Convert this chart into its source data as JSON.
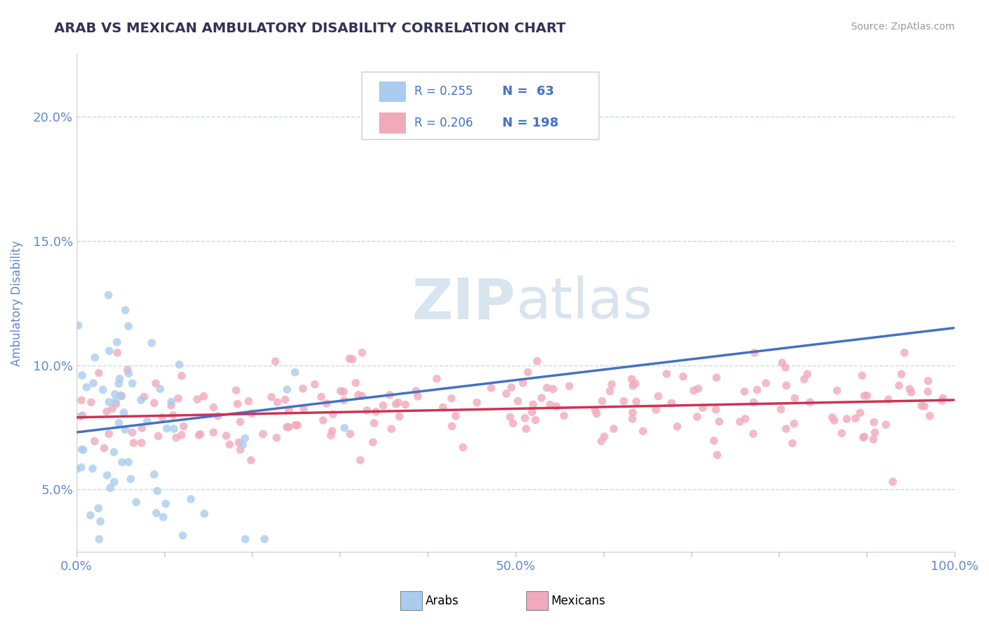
{
  "title": "ARAB VS MEXICAN AMBULATORY DISABILITY CORRELATION CHART",
  "source": "Source: ZipAtlas.com",
  "ylabel": "Ambulatory Disability",
  "xlim": [
    0,
    1.0
  ],
  "ylim": [
    0.025,
    0.225
  ],
  "yticks": [
    0.05,
    0.1,
    0.15,
    0.2
  ],
  "ytick_labels": [
    "5.0%",
    "10.0%",
    "15.0%",
    "20.0%"
  ],
  "xtick_positions": [
    0.0,
    0.1,
    0.2,
    0.3,
    0.4,
    0.5,
    0.6,
    0.7,
    0.8,
    0.9,
    1.0
  ],
  "xtick_labels_show": {
    "0.0": "0.0%",
    "0.5": "50.0%",
    "1.0": "100.0%"
  },
  "arab_color": "#aaccee",
  "mexican_color": "#f0aabb",
  "arab_line_color": "#4472c4",
  "mexican_line_color": "#cc3355",
  "arab_R": 0.255,
  "arab_N": 63,
  "mexican_R": 0.206,
  "mexican_N": 198,
  "legend_text_color": "#4472c4",
  "title_color": "#333355",
  "axis_label_color": "#6688cc",
  "tick_color": "#6688cc",
  "grid_color": "#c8d8e8",
  "watermark_color": "#d8e4ee",
  "background_color": "#ffffff",
  "arab_line_x0": 0.0,
  "arab_line_y0": 0.073,
  "arab_line_x1": 1.0,
  "arab_line_y1": 0.115,
  "mexican_line_x0": 0.0,
  "mexican_line_y0": 0.079,
  "mexican_line_x1": 1.0,
  "mexican_line_y1": 0.086
}
